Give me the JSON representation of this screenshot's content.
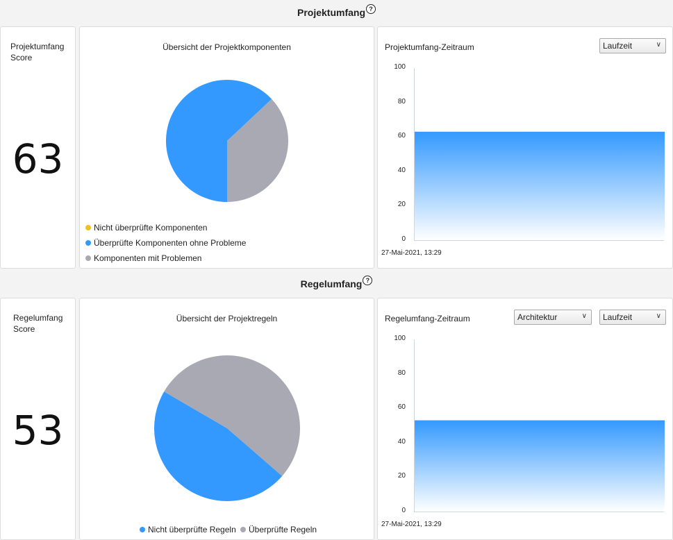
{
  "projekt": {
    "title": "Projektumfang",
    "score_label": "Projektumfang Score",
    "score": "63",
    "overview_title": "Übersicht der Projektkomponenten",
    "pie": [
      {
        "name": "Nicht überprüfte Komponenten",
        "value": 0,
        "color": "#f0c020"
      },
      {
        "name": "Überprüfte Komponenten ohne Probleme",
        "value": 63,
        "color": "#3399ff"
      },
      {
        "name": "Komponenten mit Problemen",
        "value": 37,
        "color": "#a8a9b2"
      }
    ],
    "timeline_title": "Projektumfang-Zeitraum",
    "select_value": "Laufzeit",
    "x_label": "27-Mai-2021, 13:29"
  },
  "regel": {
    "title": "Regelumfang",
    "score_label": "Regelumfang Score",
    "score": "53",
    "overview_title": "Übersicht der Projektregeln",
    "pie": [
      {
        "name": "Nicht überprüfte Regeln",
        "value": 47,
        "color": "#3399ff"
      },
      {
        "name": "Überprüfte Regeln",
        "value": 53,
        "color": "#a8a9b2"
      }
    ],
    "timeline_title": "Regelumfang-Zeitraum",
    "select_category": "Architektur",
    "select_value": "Laufzeit",
    "x_label": "27-Mai-2021, 13:29"
  },
  "chart_data": [
    {
      "type": "pie",
      "title": "Übersicht der Projektkomponenten",
      "categories": [
        "Nicht überprüfte Komponenten",
        "Überprüfte Komponenten ohne Probleme",
        "Komponenten mit Problemen"
      ],
      "values": [
        0,
        63,
        37
      ]
    },
    {
      "type": "area",
      "title": "Projektumfang-Zeitraum",
      "x": [
        "27-Mai-2021, 13:29"
      ],
      "values": [
        63
      ],
      "ylim": [
        0,
        100
      ],
      "yticks": [
        0,
        20,
        40,
        60,
        80,
        100
      ]
    },
    {
      "type": "pie",
      "title": "Übersicht der Projektregeln",
      "categories": [
        "Nicht überprüfte Regeln",
        "Überprüfte Regeln"
      ],
      "values": [
        47,
        53
      ]
    },
    {
      "type": "area",
      "title": "Regelumfang-Zeitraum",
      "x": [
        "27-Mai-2021, 13:29"
      ],
      "values": [
        53
      ],
      "ylim": [
        0,
        100
      ],
      "yticks": [
        0,
        20,
        40,
        60,
        80,
        100
      ]
    }
  ]
}
